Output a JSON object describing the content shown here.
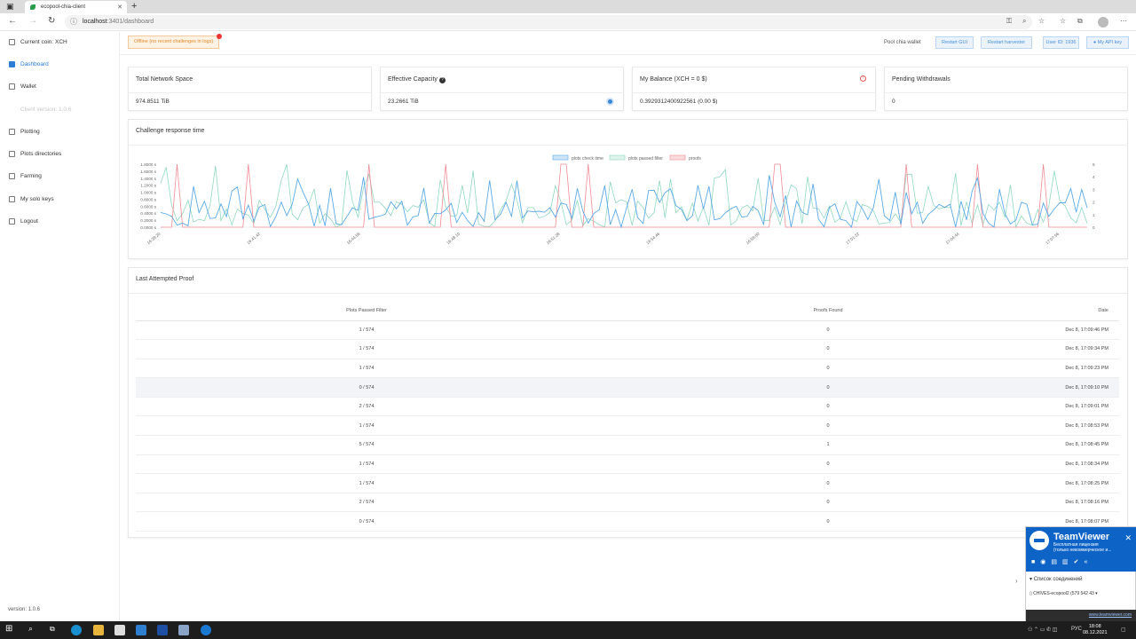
{
  "browser": {
    "tab_title": "ecopool-chia-client",
    "url_host": "localhost",
    "url_path": ":3401/dashboard"
  },
  "sidebar": {
    "coin_label": "Current coin:",
    "coin_value": "XCH",
    "items": [
      {
        "label": "Dashboard",
        "icon": "dashboard-icon"
      },
      {
        "label": "Wallet",
        "icon": "wallet-icon"
      },
      {
        "label": "Client version: 1.0.6",
        "icon": ""
      },
      {
        "label": "Plotting",
        "icon": "plotting-icon"
      },
      {
        "label": "Plots directories",
        "icon": "folder-icon"
      },
      {
        "label": "Farming",
        "icon": "farming-icon"
      },
      {
        "label": "My solo keys",
        "icon": "key-icon"
      },
      {
        "label": "Logout",
        "icon": "logout-icon"
      }
    ],
    "version": "version: 1.0.6"
  },
  "topbar": {
    "warning": "Offline (no recent challenges in logs)",
    "pool_label": "Pool chia wallet",
    "buttons": [
      "Restart GUI",
      "Restart harvester",
      "User ID: 1936",
      "My API key"
    ]
  },
  "cards": [
    {
      "title": "Total Network Space",
      "value": "974.8511 TiB"
    },
    {
      "title": "Effective Capacity",
      "value": "23.2661 TiB"
    },
    {
      "title": "My Balance (XCH = 0 $)",
      "value": "0.392931240092256​1 (0.00 $)"
    },
    {
      "title": "Pending Withdrawals",
      "value": "0"
    }
  ],
  "chart": {
    "title": "Challenge response time",
    "legend": [
      "plots check time",
      "plots passed filter",
      "proofs"
    ],
    "y_left_ticks": [
      "1.8000 s",
      "1.6000 s",
      "1.4000 s",
      "1.2000 s",
      "1.0000 s",
      "0.8000 s",
      "0.6000 s",
      "0.4000 s",
      "0.2000 s",
      "0.0000 s"
    ],
    "y_right_ticks": [
      "5",
      "4",
      "3",
      "2",
      "1",
      "0"
    ],
    "x_ticks": [
      "16:38:20",
      "16:41:42",
      "16:44:58",
      "16:48:10",
      "16:51:28",
      "16:54:46",
      "16:58:00",
      "17:01:22",
      "17:04:44",
      "17:07:56"
    ],
    "colors": {
      "check": "#5aa9e6",
      "filter": "#8fd8bf",
      "proofs": "#f08a95"
    }
  },
  "chart_data": {
    "type": "line",
    "x": [
      "16:38:20",
      "16:41:42",
      "16:44:58",
      "16:48:10",
      "16:51:28",
      "16:54:46",
      "16:58:00",
      "17:01:22",
      "17:04:44",
      "17:07:56"
    ],
    "series": [
      {
        "name": "plots check time",
        "values": [
          0.4,
          0.6,
          0.3,
          0.8,
          0.5,
          1.4,
          0.3,
          0.6,
          0.4,
          0.9
        ]
      },
      {
        "name": "plots passed filter",
        "values": [
          1,
          2,
          1,
          3,
          1,
          2,
          1,
          2,
          1,
          2
        ]
      },
      {
        "name": "proofs",
        "values": [
          0,
          0,
          0,
          0,
          5,
          0,
          5,
          0,
          0,
          0
        ]
      }
    ],
    "y_left_range": [
      0,
      1.8
    ],
    "y_right_range": [
      0,
      5
    ]
  },
  "proof": {
    "title": "Last Attempted Proof",
    "columns": [
      "Plots Passed Filter",
      "Proofs Found",
      "Date"
    ],
    "rows": [
      [
        "1 / 574",
        "0",
        "Dec 8, 17:09:46 PM"
      ],
      [
        "1 / 574",
        "0",
        "Dec 8, 17:09:34 PM"
      ],
      [
        "1 / 574",
        "0",
        "Dec 8, 17:09:23 PM"
      ],
      [
        "0 / 574",
        "0",
        "Dec 8, 17:09:10 PM"
      ],
      [
        "2 / 574",
        "0",
        "Dec 8, 17:09:01 PM"
      ],
      [
        "1 / 574",
        "0",
        "Dec 8, 17:08:53 PM"
      ],
      [
        "5 / 574",
        "1",
        "Dec 8, 17:08:45 PM"
      ],
      [
        "1 / 574",
        "0",
        "Dec 8, 17:08:34 PM"
      ],
      [
        "1 / 574",
        "0",
        "Dec 8, 17:08:25 PM"
      ],
      [
        "2 / 574",
        "0",
        "Dec 8, 17:08:16 PM"
      ],
      [
        "0 / 574",
        "0",
        "Dec 8, 17:08:07 PM"
      ]
    ]
  },
  "teamviewer": {
    "title": "TeamViewer",
    "subtitle1": "Бесплатная лицензия",
    "subtitle2": "(только некоммерческое и...",
    "list_label": "Список соединений",
    "connection": "CHIVES-ecopool2 (579 542 43",
    "footer": "www.teamviewer.com"
  },
  "taskbar": {
    "lang": "РУС",
    "time": "18:08",
    "date": "08.12.2021"
  }
}
